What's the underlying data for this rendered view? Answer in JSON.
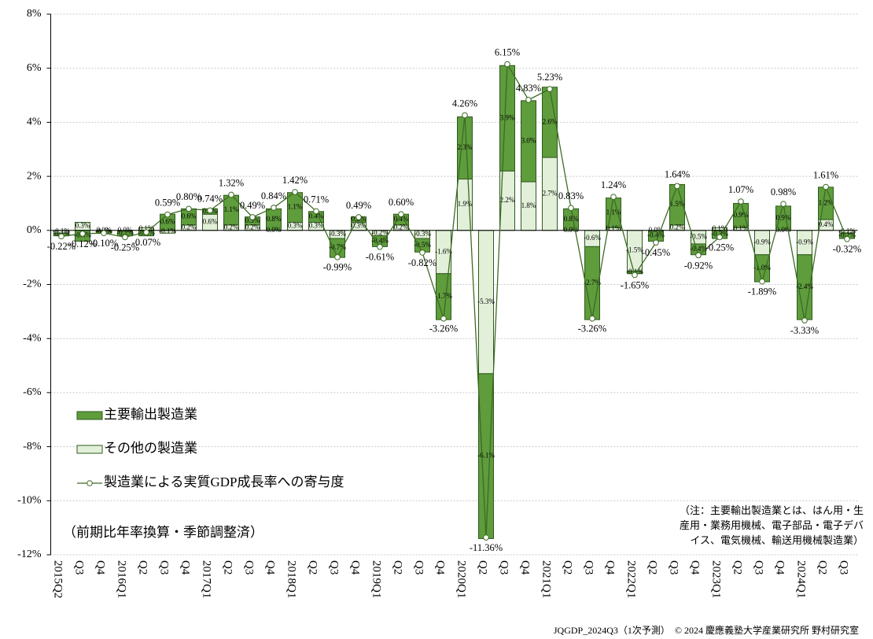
{
  "chart_data": {
    "type": "bar",
    "stacked": true,
    "categories": [
      "2015Q2",
      "Q3",
      "Q4",
      "2016Q1",
      "Q2",
      "Q3",
      "Q4",
      "2017Q1",
      "Q2",
      "Q3",
      "Q4",
      "2018Q1",
      "Q2",
      "Q3",
      "Q4",
      "2019Q1",
      "Q2",
      "Q3",
      "Q4",
      "2020Q1",
      "Q2",
      "Q3",
      "Q4",
      "2021Q1",
      "Q2",
      "Q3",
      "Q4",
      "2022Q1",
      "Q2",
      "Q3",
      "Q4",
      "2023Q1",
      "Q2",
      "Q3",
      "Q4",
      "2024Q1",
      "Q2",
      "Q3"
    ],
    "series": [
      {
        "name": "主要輸出製造業",
        "type": "bar",
        "color": "#5e9c3c",
        "values": [
          -0.1,
          -0.4,
          -0.1,
          -0.2,
          -0.2,
          0.6,
          0.6,
          0.2,
          1.1,
          0.3,
          0.8,
          1.1,
          0.4,
          -0.7,
          0.2,
          -0.4,
          0.4,
          -0.5,
          -1.7,
          2.3,
          -6.1,
          3.9,
          3.0,
          2.6,
          0.8,
          -2.7,
          1.1,
          -0.1,
          -0.4,
          1.5,
          -0.4,
          -0.3,
          0.9,
          -1.0,
          0.9,
          -2.4,
          1.2,
          -0.2
        ],
        "value_labels": [
          "-0.1%",
          "-0.4%",
          "-0.1%",
          "-0.2%",
          "-0.2%",
          "0.6%",
          "0.6%",
          "0.2%",
          "1.1%",
          "0.3%",
          "0.8%",
          "1.1%",
          "0.4%",
          "-0.7%",
          "0.2%",
          "-0.4%",
          "0.4%",
          "-0.5%",
          "-1.7%",
          "2.3%",
          "-6.1%",
          "3.9%",
          "3.0%",
          "2.6%",
          "0.8%",
          "-2.7%",
          "1.1%",
          "-0.1%",
          "-0.4%",
          "1.5%",
          "-0.4%",
          "-0.3%",
          "0.9%",
          "-1.0%",
          "0.9%",
          "-2.4%",
          "1.2%",
          "-0.2%"
        ]
      },
      {
        "name": "その他の製造業",
        "type": "bar",
        "color": "#e2efd9",
        "values": [
          -0.1,
          0.3,
          0.0,
          0.0,
          0.1,
          -0.1,
          0.2,
          0.6,
          0.2,
          0.2,
          0.0,
          0.3,
          0.3,
          -0.3,
          0.3,
          -0.2,
          0.2,
          -0.3,
          -1.6,
          1.9,
          -5.3,
          2.2,
          1.8,
          2.7,
          0.0,
          -0.6,
          0.1,
          -1.5,
          0.0,
          0.2,
          -0.5,
          0.1,
          0.1,
          -0.9,
          0.0,
          -0.9,
          0.4,
          -0.1
        ],
        "value_labels": [
          "-0.1%",
          "0.3%",
          "0.0%",
          "0.0%",
          "0.1%",
          "-0.1%",
          "0.2%",
          "0.6%",
          "0.2%",
          "0.2%",
          "0.0%",
          "0.3%",
          "0.3%",
          "-0.3%",
          "0.3%",
          "-0.2%",
          "0.2%",
          "-0.3%",
          "-1.6%",
          "1.9%",
          "-5.3%",
          "2.2%",
          "1.8%",
          "2.7%",
          "0.0%",
          "-0.6%",
          "0.1%",
          "-1.5%",
          "0.0%",
          "0.2%",
          "-0.5%",
          "0.1%",
          "0.1%",
          "-0.9%",
          "0.0%",
          "-0.9%",
          "0.4%",
          "-0.1%"
        ]
      },
      {
        "name": "製造業による実質GDP成長率への寄与度",
        "type": "line",
        "color": "#3d6b25",
        "values": [
          -0.22,
          -0.12,
          -0.1,
          -0.25,
          -0.07,
          0.59,
          0.8,
          0.74,
          1.32,
          0.49,
          0.84,
          1.42,
          0.71,
          -0.99,
          0.49,
          -0.61,
          0.6,
          -0.82,
          -3.26,
          4.26,
          -11.36,
          6.15,
          4.83,
          5.23,
          0.83,
          -3.26,
          1.24,
          -1.65,
          -0.45,
          1.64,
          -0.92,
          -0.25,
          1.07,
          -1.89,
          0.98,
          -3.33,
          1.61,
          -0.32
        ],
        "value_labels": [
          "-0.22%",
          "-0.12%",
          "-0.10%",
          "-0.25%",
          "-0.07%",
          "0.59%",
          "0.80%",
          "0.74%",
          "1.32%",
          "0.49%",
          "0.84%",
          "1.42%",
          "0.71%",
          "-0.99%",
          "0.49%",
          "-0.61%",
          "0.60%",
          "-0.82%",
          "-3.26%",
          "4.26%",
          "-11.36%",
          "6.15%",
          "4.83%",
          "5.23%",
          "0.83%",
          "-3.26%",
          "1.24%",
          "-1.65%",
          "-0.45%",
          "1.64%",
          "-0.92%",
          "-0.25%",
          "1.07%",
          "-1.89%",
          "0.98%",
          "-3.33%",
          "1.61%",
          "-0.32%"
        ]
      }
    ],
    "ylim": [
      -12,
      8
    ],
    "yticks": [
      {
        "value": -12,
        "label": "-12%"
      },
      {
        "value": -10,
        "label": "-10%"
      },
      {
        "value": -8,
        "label": "-8%"
      },
      {
        "value": -6,
        "label": "-6%"
      },
      {
        "value": -4,
        "label": "-4%"
      },
      {
        "value": -2,
        "label": "-2%"
      },
      {
        "value": 0,
        "label": "0%"
      },
      {
        "value": 2,
        "label": "2%"
      },
      {
        "value": 4,
        "label": "4%"
      },
      {
        "value": 6,
        "label": "6%"
      },
      {
        "value": 8,
        "label": "8%"
      }
    ],
    "grid": true,
    "legend": "lower-left",
    "basis": "（前期比年率換算・季節調整済）",
    "note": [
      "（注：主要輸出製造業とは、はん用・生",
      "産用・業務用機械、電子部品・電子デバ",
      "イス、電気機械、輸送用機械製造業）"
    ],
    "source": "JQGDP_2024Q3（1次予測）　© 2024 慶應義塾大学産業研究所 野村研究室"
  }
}
